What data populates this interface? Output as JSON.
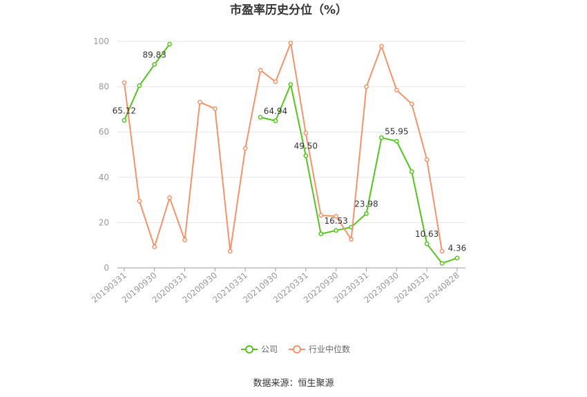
{
  "chart_data": {
    "type": "line",
    "title": "市盈率历史分位（%）",
    "xlabel": "",
    "ylabel": "",
    "ylim": [
      0,
      100
    ],
    "yticks": [
      0,
      20,
      40,
      60,
      80,
      100
    ],
    "grid": true,
    "legend_position": "bottom",
    "x": [
      "20190331",
      "20190630",
      "20190930",
      "20191231",
      "20200331",
      "20200630",
      "20200930",
      "20201231",
      "20210331",
      "20210630",
      "20210930",
      "20211231",
      "20220331",
      "20220630",
      "20220930",
      "20221231",
      "20230331",
      "20230630",
      "20230930",
      "20231231",
      "20240331",
      "20240630",
      "20240828"
    ],
    "xtick_labels": [
      "20190331",
      "20190930",
      "20200331",
      "20200930",
      "20210331",
      "20210930",
      "20220331",
      "20220930",
      "20230331",
      "20230930",
      "20240331",
      "20240828"
    ],
    "series": [
      {
        "name": "公司",
        "color": "#52c41a",
        "values": [
          65.12,
          80.5,
          89.83,
          98.8,
          null,
          null,
          null,
          null,
          null,
          66.5,
          64.94,
          81.0,
          49.5,
          15.0,
          16.53,
          18.0,
          23.98,
          57.5,
          55.95,
          42.5,
          10.63,
          2.0,
          4.36
        ],
        "labels": [
          {
            "index": 0,
            "text": "65.12"
          },
          {
            "index": 2,
            "text": "89.83"
          },
          {
            "index": 10,
            "text": "64.94"
          },
          {
            "index": 12,
            "text": "49.50"
          },
          {
            "index": 14,
            "text": "16.53"
          },
          {
            "index": 16,
            "text": "23.98"
          },
          {
            "index": 18,
            "text": "55.95"
          },
          {
            "index": 20,
            "text": "10.63"
          },
          {
            "index": 22,
            "text": "4.36"
          }
        ]
      },
      {
        "name": "行业中位数",
        "color": "#f4926a",
        "values": [
          81.8,
          29.5,
          9.3,
          31.0,
          12.3,
          73.2,
          70.3,
          7.3,
          52.8,
          87.3,
          82.2,
          99.3,
          59.5,
          23.2,
          22.8,
          12.6,
          80.0,
          97.9,
          78.5,
          72.4,
          47.8,
          7.4,
          null
        ]
      }
    ]
  },
  "source_text": "数据来源：恒生聚源"
}
